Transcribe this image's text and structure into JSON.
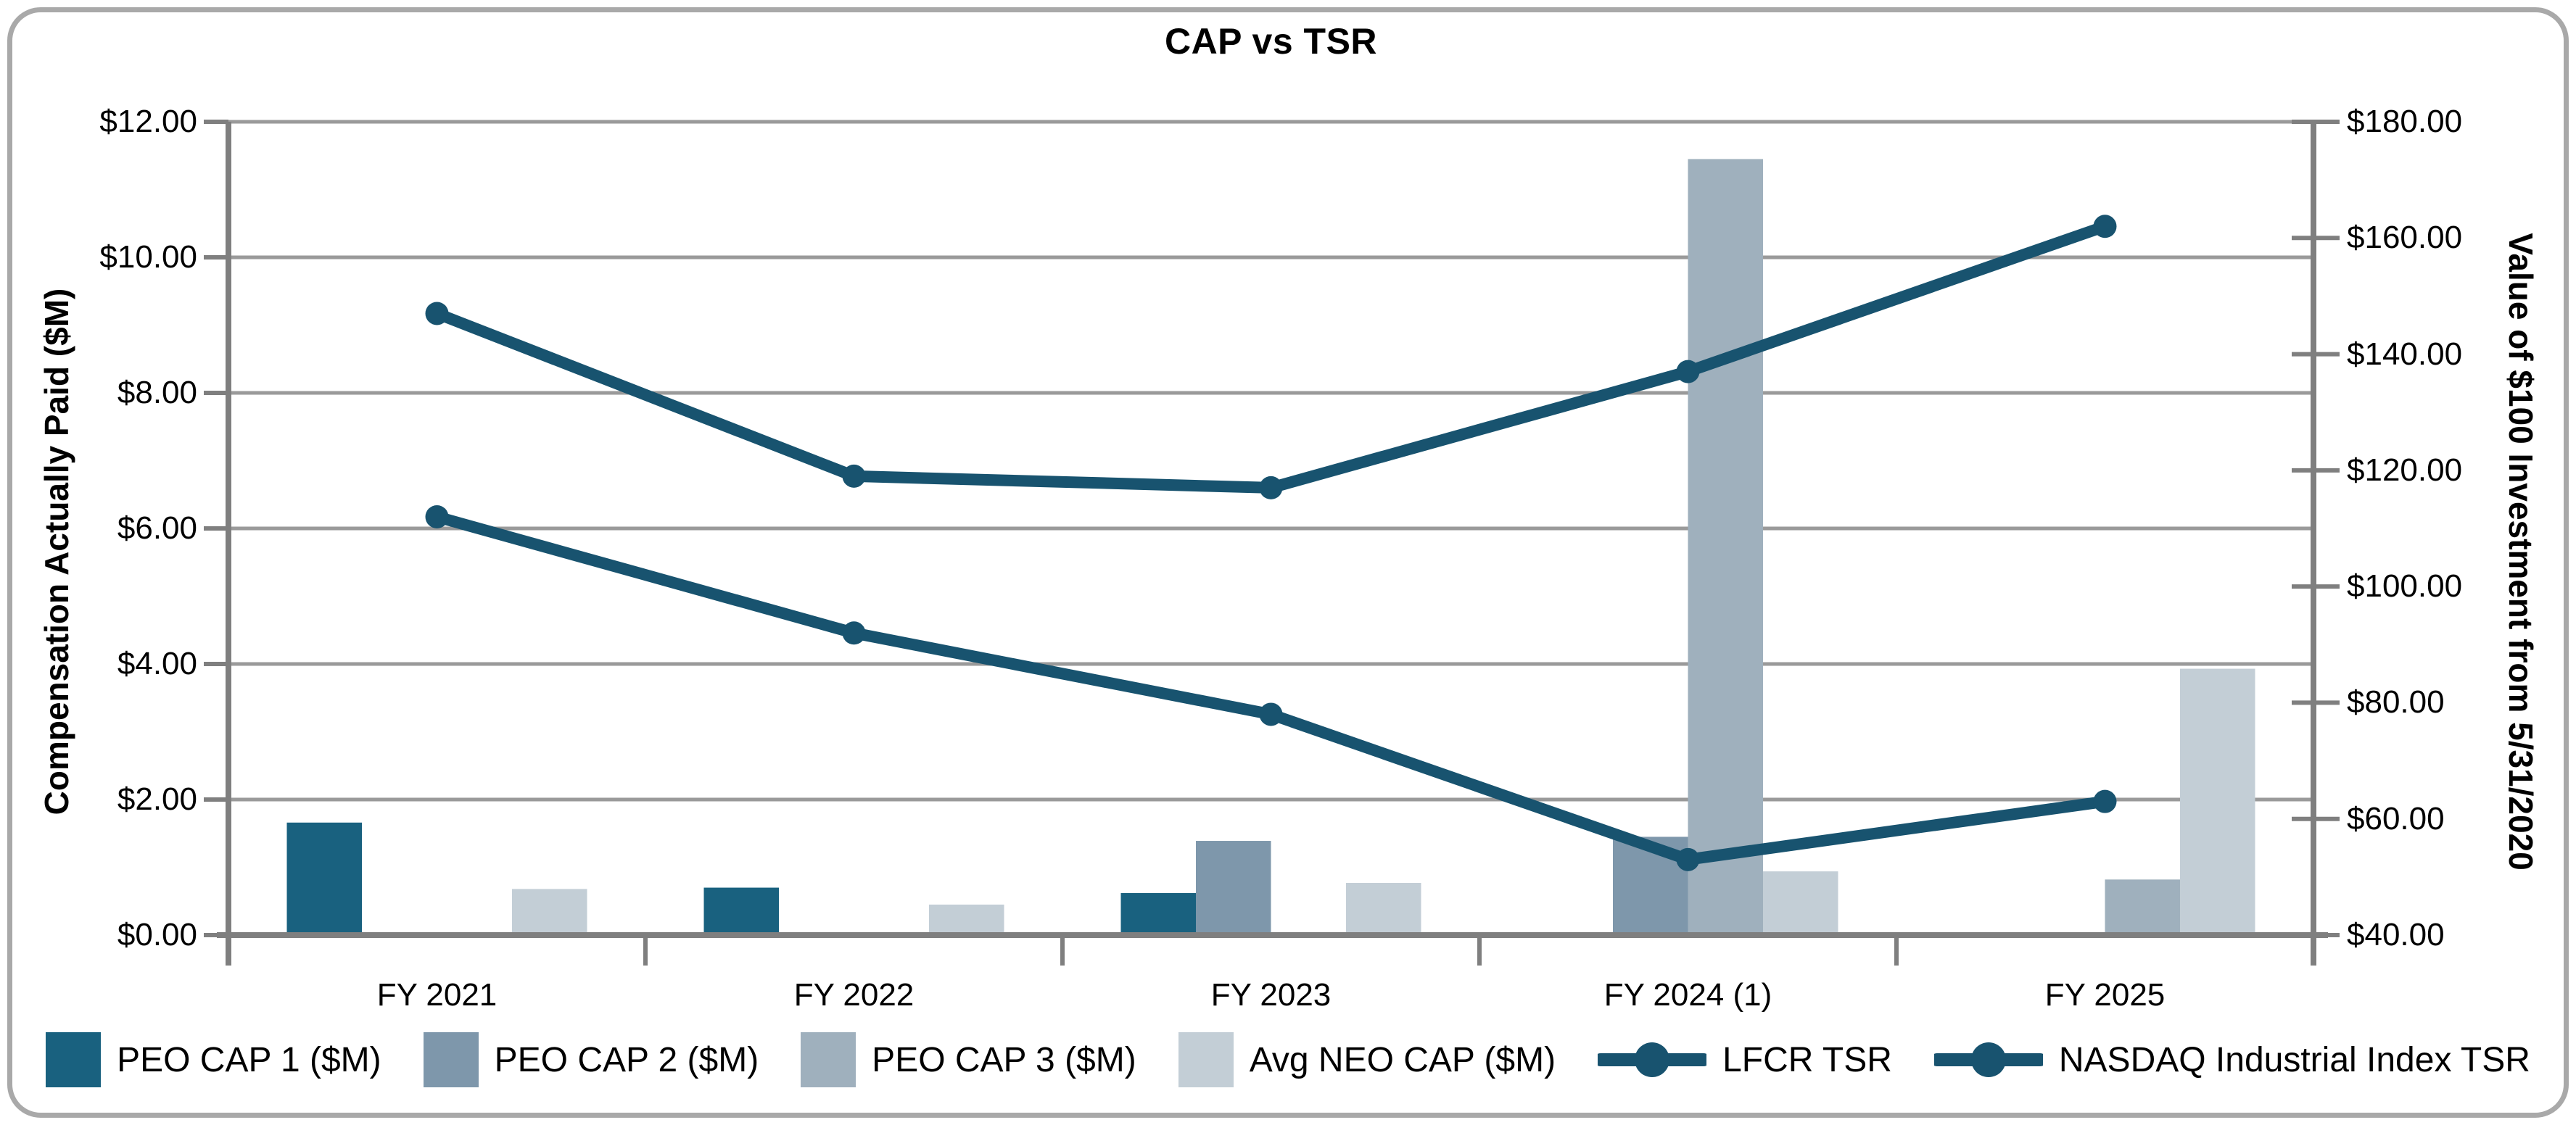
{
  "chart_data": {
    "type": "combo-bar-line",
    "title": "CAP vs TSR",
    "categories": [
      "FY 2021",
      "FY 2022",
      "FY 2023",
      "FY 2024 (1)",
      "FY 2025"
    ],
    "bar_series": [
      {
        "name": "PEO CAP 1 ($M)",
        "color": "#19617F",
        "axis": "left",
        "values": [
          1.66,
          0.7,
          0.62,
          null,
          null
        ]
      },
      {
        "name": "PEO CAP 2 ($M)",
        "color": "#7E97AB",
        "axis": "left",
        "values": [
          null,
          null,
          1.39,
          1.45,
          null
        ]
      },
      {
        "name": "PEO CAP 3 ($M)",
        "color": "#9FB0BD",
        "axis": "left",
        "values": [
          null,
          null,
          null,
          11.45,
          0.82
        ]
      },
      {
        "name": "Avg NEO CAP ($M)",
        "color": "#C3CED6",
        "axis": "left",
        "values": [
          0.68,
          0.45,
          0.77,
          0.94,
          3.93
        ]
      }
    ],
    "line_series": [
      {
        "name": "LFCR TSR",
        "color": "#18536F",
        "axis": "right",
        "values": [
          112,
          92,
          78,
          53,
          63
        ]
      },
      {
        "name": "NASDAQ Industrial Index TSR",
        "color": "#18536F",
        "axis": "right",
        "values": [
          147,
          119,
          117,
          137,
          162
        ]
      }
    ],
    "left_axis": {
      "title": "Compensation Actually Paid ($M)",
      "min": 0,
      "max": 12,
      "step": 2,
      "tick_labels": [
        "$0.00",
        "$2.00",
        "$4.00",
        "$6.00",
        "$8.00",
        "$10.00",
        "$12.00"
      ]
    },
    "right_axis": {
      "title": "Value of $100 Investment from 5/31/2020",
      "min": 40,
      "max": 180,
      "step": 20,
      "tick_labels": [
        "$40.00",
        "$60.00",
        "$80.00",
        "$100.00",
        "$120.00",
        "$140.00",
        "$160.00",
        "$180.00"
      ]
    },
    "grid": true,
    "legend_position": "bottom",
    "style": {
      "grid_color": "#9A9A9A",
      "axis_color": "#7F7F7F",
      "text_color": "#000000",
      "frame_border_color": "#A9A9A9",
      "background": "#FFFFFF"
    }
  }
}
